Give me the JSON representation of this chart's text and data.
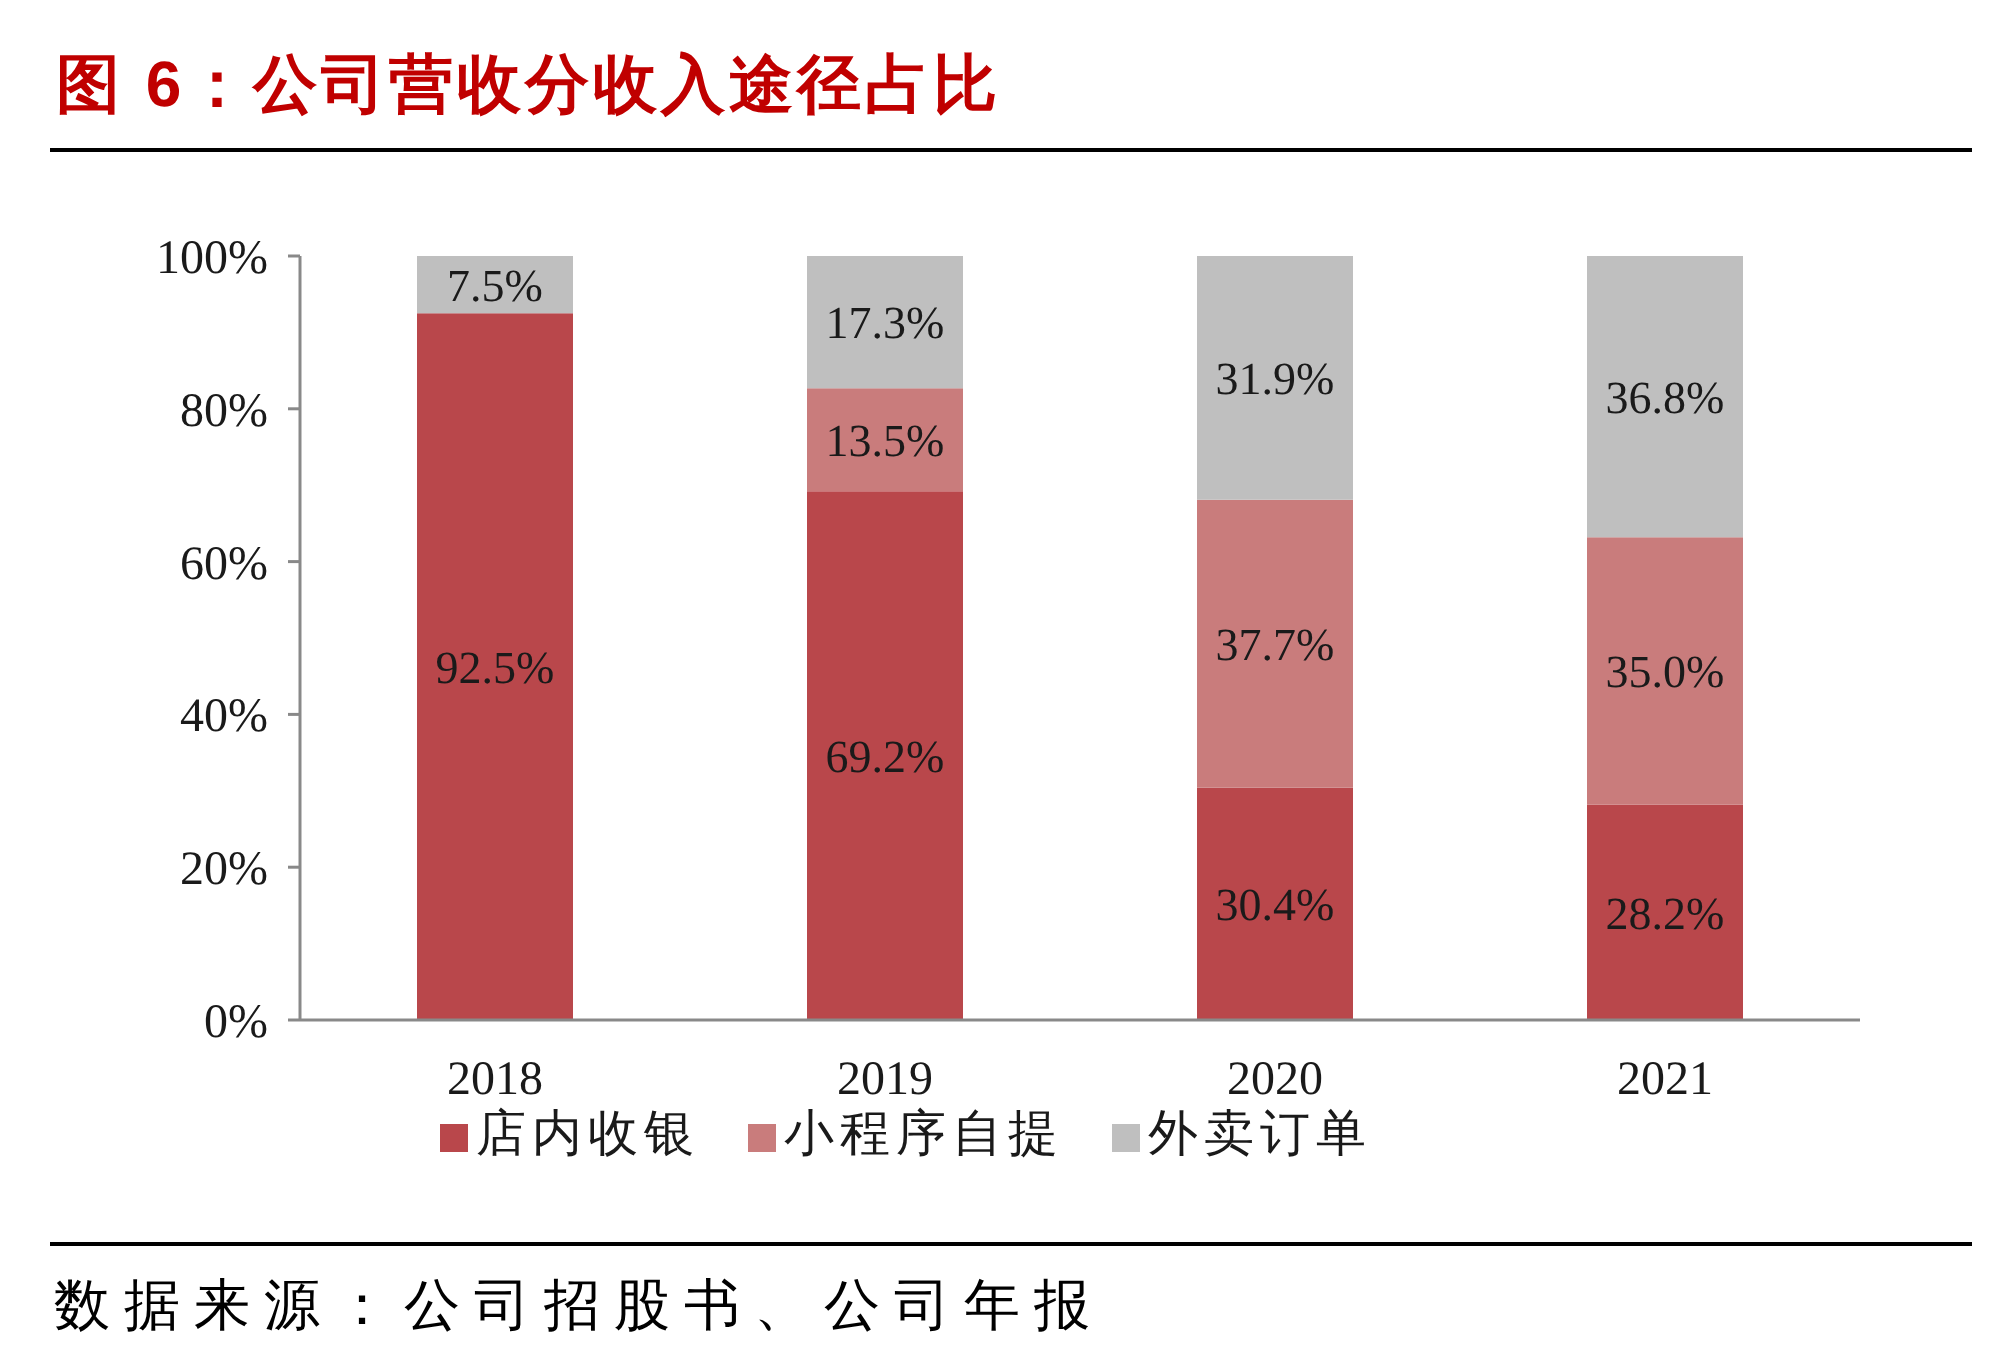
{
  "chart_data": {
    "type": "bar",
    "title": "图 6：公司营收分收入途径占比",
    "categories": [
      "2018",
      "2019",
      "2020",
      "2021"
    ],
    "stacked": true,
    "series": [
      {
        "name": "店内收银",
        "color": "#b9474b",
        "values": [
          92.5,
          69.2,
          30.4,
          28.2
        ],
        "value_labels": [
          "92.5%",
          "69.2%",
          "30.4%",
          "28.2%"
        ]
      },
      {
        "name": "小程序自提",
        "color": "#c97c7c",
        "values": [
          null,
          13.5,
          37.7,
          35.0
        ],
        "value_labels": [
          null,
          "13.5%",
          "37.7%",
          "35.0%"
        ]
      },
      {
        "name": "外卖订单",
        "color": "#bfbfbf",
        "values": [
          7.5,
          17.3,
          31.9,
          36.8
        ],
        "value_labels": [
          "7.5%",
          "17.3%",
          "31.9%",
          "36.8%"
        ]
      }
    ],
    "ylim": [
      0,
      100
    ],
    "yticks": [
      {
        "value": 0,
        "label": "0%"
      },
      {
        "value": 20,
        "label": "20%"
      },
      {
        "value": 40,
        "label": "40%"
      },
      {
        "value": 60,
        "label": "60%"
      },
      {
        "value": 80,
        "label": "80%"
      },
      {
        "value": 100,
        "label": "100%"
      }
    ],
    "legend": "bottom",
    "annotations": [
      "数据来源：公司招股书、公司年报"
    ]
  }
}
